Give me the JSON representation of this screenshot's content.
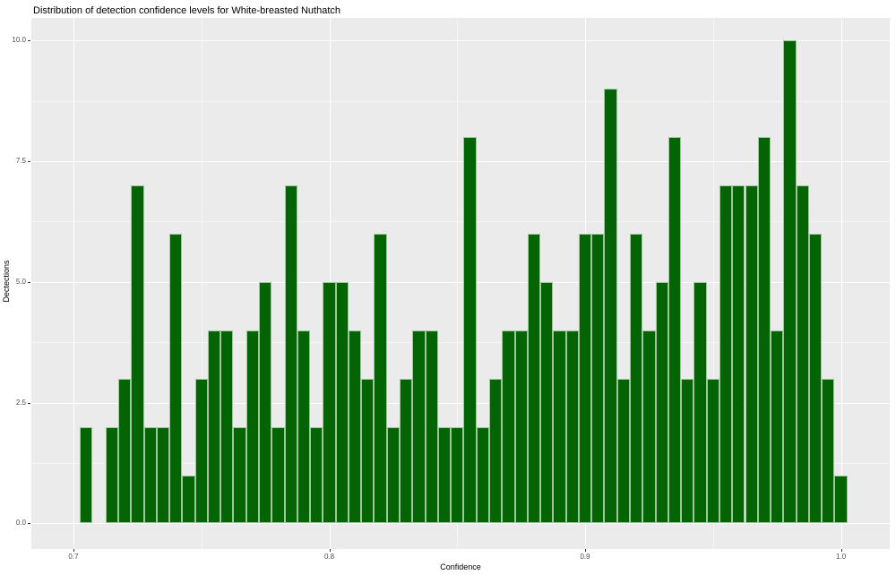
{
  "title": "Distribution of detection confidence levels for White-breasted Nuthatch",
  "axes": {
    "x_title": "Confidence",
    "y_title": "Dectections",
    "x_tick_labels": [
      "0.7",
      "0.8",
      "0.9",
      "1.0"
    ],
    "y_tick_labels": [
      "0.0",
      "2.5",
      "5.0",
      "7.5",
      "10.0"
    ]
  },
  "colors": {
    "bar_fill": "#046404",
    "bar_border": "#9cc69c",
    "panel_bg": "#ebebeb",
    "grid_major": "#ffffff",
    "grid_minor": "#ffffff",
    "tick_text": "#4d4d4d",
    "title_text": "#000000"
  },
  "chart_data": {
    "type": "bar",
    "subtype": "histogram",
    "title": "Distribution of detection confidence levels for White-breasted Nuthatch",
    "xlabel": "Confidence",
    "ylabel": "Dectections",
    "bin_width": 0.005,
    "bin_centers": [
      0.705,
      0.71,
      0.715,
      0.72,
      0.725,
      0.73,
      0.735,
      0.74,
      0.745,
      0.75,
      0.755,
      0.76,
      0.765,
      0.77,
      0.775,
      0.78,
      0.785,
      0.79,
      0.795,
      0.8,
      0.805,
      0.81,
      0.815,
      0.82,
      0.825,
      0.83,
      0.835,
      0.84,
      0.845,
      0.85,
      0.855,
      0.86,
      0.865,
      0.87,
      0.875,
      0.88,
      0.885,
      0.89,
      0.895,
      0.9,
      0.905,
      0.91,
      0.915,
      0.92,
      0.925,
      0.93,
      0.935,
      0.94,
      0.945,
      0.95,
      0.955,
      0.96,
      0.965,
      0.97,
      0.975,
      0.98,
      0.985,
      0.99,
      0.995,
      1.0
    ],
    "counts": [
      2,
      0,
      2,
      3,
      7,
      2,
      2,
      6,
      1,
      3,
      4,
      4,
      2,
      4,
      5,
      2,
      7,
      4,
      2,
      5,
      5,
      4,
      3,
      6,
      2,
      3,
      4,
      4,
      2,
      2,
      8,
      2,
      3,
      4,
      4,
      6,
      5,
      4,
      4,
      6,
      6,
      9,
      3,
      6,
      4,
      5,
      8,
      3,
      5,
      3,
      7,
      7,
      7,
      8,
      4,
      10,
      7,
      6,
      3,
      1
    ],
    "x_ticks": [
      0.7,
      0.8,
      0.9,
      1.0
    ],
    "x_minor_ticks": [
      0.75,
      0.85,
      0.95
    ],
    "y_ticks": [
      0.0,
      2.5,
      5.0,
      7.5,
      10.0
    ],
    "y_minor_ticks": [
      1.25,
      3.75,
      6.25,
      8.75
    ],
    "xlim": [
      0.68354,
      1.01906
    ],
    "ylim": [
      -0.53,
      10.47
    ],
    "grid": true,
    "legend": false
  }
}
